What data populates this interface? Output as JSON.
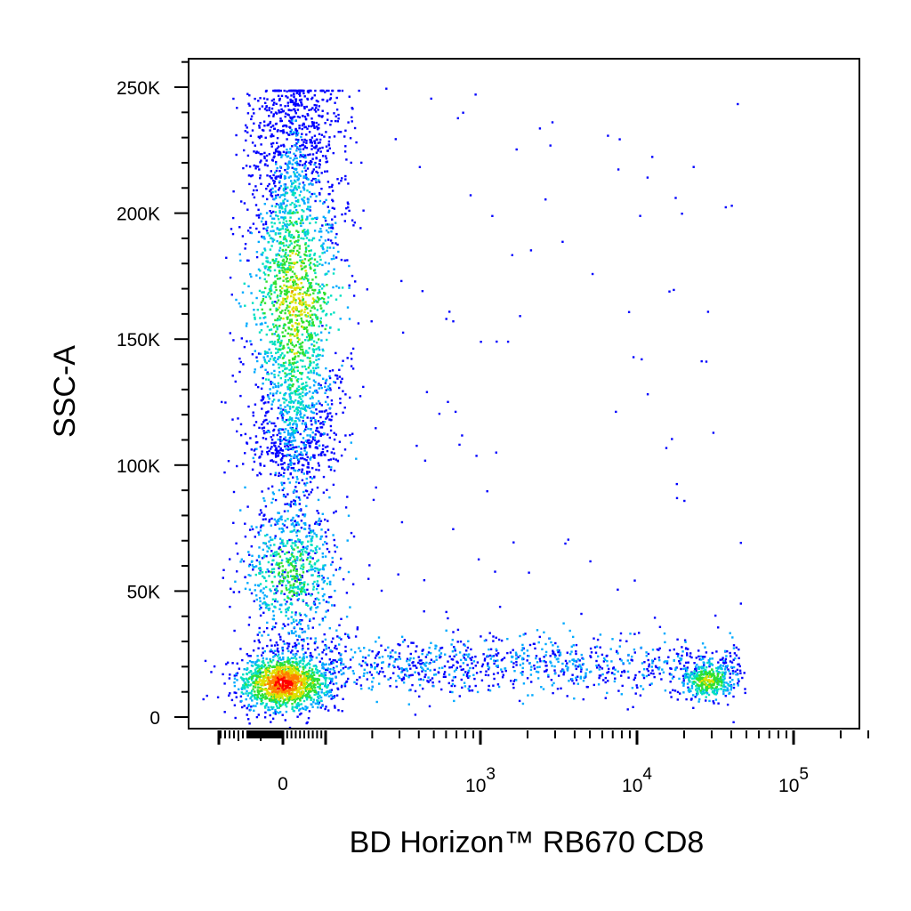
{
  "chart_data": {
    "type": "scatter",
    "subtype": "flow-cytometry density dot plot",
    "xlabel": "BD Horizon™ RB670 CD8",
    "ylabel": "SSC-A",
    "x_scale": "biexponential",
    "y_scale": "linear",
    "ylim": [
      0,
      262144
    ],
    "y_ticks": [
      {
        "value": 0,
        "label": "0"
      },
      {
        "value": 50000,
        "label": "50K"
      },
      {
        "value": 100000,
        "label": "100K"
      },
      {
        "value": 150000,
        "label": "150K"
      },
      {
        "value": 200000,
        "label": "200K"
      },
      {
        "value": 250000,
        "label": "250K"
      }
    ],
    "x_ticks": [
      {
        "value": 0,
        "base": "0",
        "exp": ""
      },
      {
        "value": 1000,
        "base": "10",
        "exp": "3"
      },
      {
        "value": 10000,
        "base": "10",
        "exp": "4"
      },
      {
        "value": 100000,
        "base": "10",
        "exp": "5"
      }
    ],
    "color_scale": [
      "#0000ff",
      "#00aaff",
      "#00e0c0",
      "#30e030",
      "#e0e000",
      "#ff8000",
      "#ff0000"
    ],
    "populations": [
      {
        "x_center": 0,
        "y_center": 14000,
        "n": 1400,
        "density": "high"
      },
      {
        "x_center": 0,
        "y_center": 160000,
        "n": 2600,
        "density": "medium"
      },
      {
        "x_center": 0,
        "y_center": 58000,
        "n": 500,
        "density": "low"
      },
      {
        "x_center": 28000,
        "y_center": 15000,
        "n": 380,
        "density": "medium"
      },
      {
        "x_range": [
          100,
          40000
        ],
        "y_center": 21000,
        "n": 950,
        "density": "low"
      }
    ],
    "grid": false,
    "legend": "none"
  }
}
